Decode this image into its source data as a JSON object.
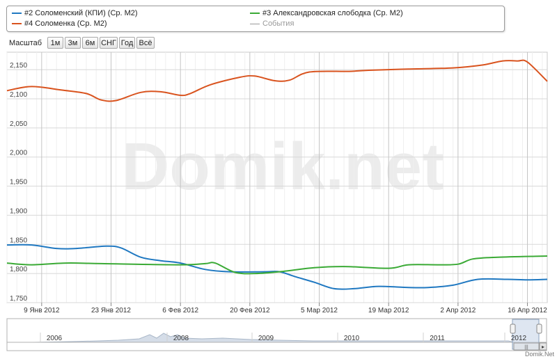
{
  "legend": {
    "items": [
      {
        "label": "#2 Соломенский (КПИ) (Ср. М2)",
        "color": "#1f78c1"
      },
      {
        "label": "#3 Александровская слободка (Ср. М2)",
        "color": "#3aaa35"
      },
      {
        "label": "#4 Соломенка (Ср. М2)",
        "color": "#d9531e"
      },
      {
        "label": "События",
        "color": "#999999"
      }
    ]
  },
  "zoom": {
    "label": "Масштаб",
    "buttons": [
      "1м",
      "3м",
      "6м",
      "СНГ",
      "Год",
      "Всё"
    ]
  },
  "watermark": "Domik.net",
  "credit": "Domik.Net",
  "chart_data": {
    "type": "line",
    "ylim": [
      1750,
      2180
    ],
    "y_ticks": [
      1750,
      1800,
      1850,
      1900,
      1950,
      2000,
      2050,
      2100,
      2150
    ],
    "y_tick_labels": [
      "1,750",
      "1,800",
      "1,850",
      "1,900",
      "1,950",
      "2,000",
      "2,050",
      "2,100",
      "2,150"
    ],
    "x_range": [
      "2012-01-02",
      "2012-04-20"
    ],
    "x_ticks": [
      {
        "date": "2012-01-09",
        "label": "9 Янв 2012"
      },
      {
        "date": "2012-01-23",
        "label": "23 Янв 2012"
      },
      {
        "date": "2012-02-06",
        "label": "6 Фев 2012"
      },
      {
        "date": "2012-02-20",
        "label": "20 Фев 2012"
      },
      {
        "date": "2012-03-05",
        "label": "5 Мар 2012"
      },
      {
        "date": "2012-03-19",
        "label": "19 Мар 2012"
      },
      {
        "date": "2012-04-02",
        "label": "2 Апр 2012"
      },
      {
        "date": "2012-04-16",
        "label": "16 Апр 2012"
      }
    ],
    "grid": true,
    "series": [
      {
        "name": "#2 Соломенский (КПИ) (Ср. М2)",
        "color": "#1f78c1",
        "points": [
          [
            "2012-01-02",
            1849
          ],
          [
            "2012-01-07",
            1849
          ],
          [
            "2012-01-12",
            1843
          ],
          [
            "2012-01-16",
            1843
          ],
          [
            "2012-01-22",
            1847
          ],
          [
            "2012-01-25",
            1844
          ],
          [
            "2012-01-29",
            1828
          ],
          [
            "2012-02-02",
            1822
          ],
          [
            "2012-02-06",
            1818
          ],
          [
            "2012-02-11",
            1807
          ],
          [
            "2012-02-16",
            1803
          ],
          [
            "2012-02-23",
            1803
          ],
          [
            "2012-02-26",
            1803
          ],
          [
            "2012-02-29",
            1795
          ],
          [
            "2012-03-04",
            1785
          ],
          [
            "2012-03-08",
            1774
          ],
          [
            "2012-03-12",
            1774
          ],
          [
            "2012-03-17",
            1778
          ],
          [
            "2012-03-23",
            1776
          ],
          [
            "2012-03-27",
            1776
          ],
          [
            "2012-04-01",
            1780
          ],
          [
            "2012-04-06",
            1790
          ],
          [
            "2012-04-12",
            1790
          ],
          [
            "2012-04-16",
            1789
          ],
          [
            "2012-04-20",
            1790
          ]
        ]
      },
      {
        "name": "#3 Александровская слободка (Ср. М2)",
        "color": "#3aaa35",
        "points": [
          [
            "2012-01-02",
            1818
          ],
          [
            "2012-01-07",
            1815
          ],
          [
            "2012-01-14",
            1818
          ],
          [
            "2012-01-21",
            1817
          ],
          [
            "2012-02-06",
            1815
          ],
          [
            "2012-02-11",
            1817
          ],
          [
            "2012-02-13",
            1818
          ],
          [
            "2012-02-17",
            1802
          ],
          [
            "2012-02-21",
            1800
          ],
          [
            "2012-02-26",
            1803
          ],
          [
            "2012-03-04",
            1810
          ],
          [
            "2012-03-10",
            1812
          ],
          [
            "2012-03-19",
            1809
          ],
          [
            "2012-03-23",
            1815
          ],
          [
            "2012-03-29",
            1815
          ],
          [
            "2012-04-02",
            1816
          ],
          [
            "2012-04-05",
            1825
          ],
          [
            "2012-04-10",
            1828
          ],
          [
            "2012-04-20",
            1830
          ]
        ]
      },
      {
        "name": "#4 Соломенка (Ср. М2)",
        "color": "#d9531e",
        "points": [
          [
            "2012-01-02",
            2114
          ],
          [
            "2012-01-07",
            2121
          ],
          [
            "2012-01-13",
            2115
          ],
          [
            "2012-01-18",
            2109
          ],
          [
            "2012-01-21",
            2098
          ],
          [
            "2012-01-24",
            2097
          ],
          [
            "2012-01-29",
            2111
          ],
          [
            "2012-02-02",
            2112
          ],
          [
            "2012-02-06",
            2106
          ],
          [
            "2012-02-08",
            2109
          ],
          [
            "2012-02-12",
            2124
          ],
          [
            "2012-02-18",
            2137
          ],
          [
            "2012-02-21",
            2139
          ],
          [
            "2012-02-25",
            2131
          ],
          [
            "2012-02-28",
            2132
          ],
          [
            "2012-03-03",
            2146
          ],
          [
            "2012-03-11",
            2147
          ],
          [
            "2012-03-15",
            2149
          ],
          [
            "2012-03-23",
            2151
          ],
          [
            "2012-04-01",
            2153
          ],
          [
            "2012-04-07",
            2158
          ],
          [
            "2012-04-11",
            2165
          ],
          [
            "2012-04-14",
            2165
          ],
          [
            "2012-04-16",
            2163
          ],
          [
            "2012-04-20",
            2130
          ]
        ]
      }
    ]
  },
  "navigator": {
    "years": [
      "2006",
      "2008",
      "2009",
      "2010",
      "2011",
      "2012"
    ]
  }
}
